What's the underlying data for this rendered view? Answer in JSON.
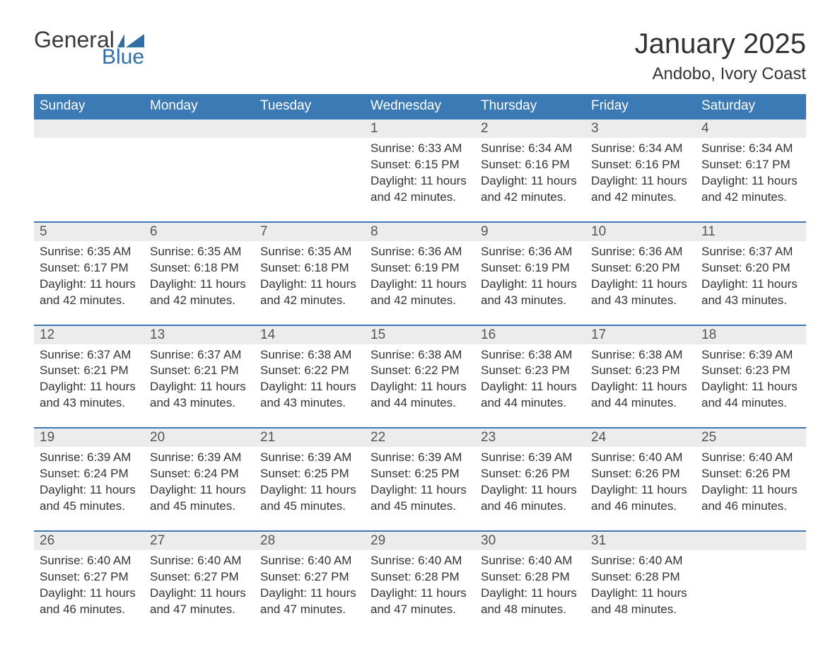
{
  "logo": {
    "text_general": "General",
    "text_blue": "Blue",
    "flag_color": "#2f6fa8"
  },
  "title": "January 2025",
  "location": "Andobo, Ivory Coast",
  "colors": {
    "header_bg": "#3b7ab5",
    "strip_bg": "#ececec",
    "strip_border": "#3b7ab5",
    "text": "#333333",
    "daynum_text": "#555555",
    "bg": "#ffffff"
  },
  "days_of_week": [
    "Sunday",
    "Monday",
    "Tuesday",
    "Wednesday",
    "Thursday",
    "Friday",
    "Saturday"
  ],
  "weeks": [
    [
      {
        "day": "",
        "sunrise": "",
        "sunset": "",
        "daylight": ""
      },
      {
        "day": "",
        "sunrise": "",
        "sunset": "",
        "daylight": ""
      },
      {
        "day": "",
        "sunrise": "",
        "sunset": "",
        "daylight": ""
      },
      {
        "day": "1",
        "sunrise": "Sunrise: 6:33 AM",
        "sunset": "Sunset: 6:15 PM",
        "daylight": "Daylight: 11 hours and 42 minutes."
      },
      {
        "day": "2",
        "sunrise": "Sunrise: 6:34 AM",
        "sunset": "Sunset: 6:16 PM",
        "daylight": "Daylight: 11 hours and 42 minutes."
      },
      {
        "day": "3",
        "sunrise": "Sunrise: 6:34 AM",
        "sunset": "Sunset: 6:16 PM",
        "daylight": "Daylight: 11 hours and 42 minutes."
      },
      {
        "day": "4",
        "sunrise": "Sunrise: 6:34 AM",
        "sunset": "Sunset: 6:17 PM",
        "daylight": "Daylight: 11 hours and 42 minutes."
      }
    ],
    [
      {
        "day": "5",
        "sunrise": "Sunrise: 6:35 AM",
        "sunset": "Sunset: 6:17 PM",
        "daylight": "Daylight: 11 hours and 42 minutes."
      },
      {
        "day": "6",
        "sunrise": "Sunrise: 6:35 AM",
        "sunset": "Sunset: 6:18 PM",
        "daylight": "Daylight: 11 hours and 42 minutes."
      },
      {
        "day": "7",
        "sunrise": "Sunrise: 6:35 AM",
        "sunset": "Sunset: 6:18 PM",
        "daylight": "Daylight: 11 hours and 42 minutes."
      },
      {
        "day": "8",
        "sunrise": "Sunrise: 6:36 AM",
        "sunset": "Sunset: 6:19 PM",
        "daylight": "Daylight: 11 hours and 42 minutes."
      },
      {
        "day": "9",
        "sunrise": "Sunrise: 6:36 AM",
        "sunset": "Sunset: 6:19 PM",
        "daylight": "Daylight: 11 hours and 43 minutes."
      },
      {
        "day": "10",
        "sunrise": "Sunrise: 6:36 AM",
        "sunset": "Sunset: 6:20 PM",
        "daylight": "Daylight: 11 hours and 43 minutes."
      },
      {
        "day": "11",
        "sunrise": "Sunrise: 6:37 AM",
        "sunset": "Sunset: 6:20 PM",
        "daylight": "Daylight: 11 hours and 43 minutes."
      }
    ],
    [
      {
        "day": "12",
        "sunrise": "Sunrise: 6:37 AM",
        "sunset": "Sunset: 6:21 PM",
        "daylight": "Daylight: 11 hours and 43 minutes."
      },
      {
        "day": "13",
        "sunrise": "Sunrise: 6:37 AM",
        "sunset": "Sunset: 6:21 PM",
        "daylight": "Daylight: 11 hours and 43 minutes."
      },
      {
        "day": "14",
        "sunrise": "Sunrise: 6:38 AM",
        "sunset": "Sunset: 6:22 PM",
        "daylight": "Daylight: 11 hours and 43 minutes."
      },
      {
        "day": "15",
        "sunrise": "Sunrise: 6:38 AM",
        "sunset": "Sunset: 6:22 PM",
        "daylight": "Daylight: 11 hours and 44 minutes."
      },
      {
        "day": "16",
        "sunrise": "Sunrise: 6:38 AM",
        "sunset": "Sunset: 6:23 PM",
        "daylight": "Daylight: 11 hours and 44 minutes."
      },
      {
        "day": "17",
        "sunrise": "Sunrise: 6:38 AM",
        "sunset": "Sunset: 6:23 PM",
        "daylight": "Daylight: 11 hours and 44 minutes."
      },
      {
        "day": "18",
        "sunrise": "Sunrise: 6:39 AM",
        "sunset": "Sunset: 6:23 PM",
        "daylight": "Daylight: 11 hours and 44 minutes."
      }
    ],
    [
      {
        "day": "19",
        "sunrise": "Sunrise: 6:39 AM",
        "sunset": "Sunset: 6:24 PM",
        "daylight": "Daylight: 11 hours and 45 minutes."
      },
      {
        "day": "20",
        "sunrise": "Sunrise: 6:39 AM",
        "sunset": "Sunset: 6:24 PM",
        "daylight": "Daylight: 11 hours and 45 minutes."
      },
      {
        "day": "21",
        "sunrise": "Sunrise: 6:39 AM",
        "sunset": "Sunset: 6:25 PM",
        "daylight": "Daylight: 11 hours and 45 minutes."
      },
      {
        "day": "22",
        "sunrise": "Sunrise: 6:39 AM",
        "sunset": "Sunset: 6:25 PM",
        "daylight": "Daylight: 11 hours and 45 minutes."
      },
      {
        "day": "23",
        "sunrise": "Sunrise: 6:39 AM",
        "sunset": "Sunset: 6:26 PM",
        "daylight": "Daylight: 11 hours and 46 minutes."
      },
      {
        "day": "24",
        "sunrise": "Sunrise: 6:40 AM",
        "sunset": "Sunset: 6:26 PM",
        "daylight": "Daylight: 11 hours and 46 minutes."
      },
      {
        "day": "25",
        "sunrise": "Sunrise: 6:40 AM",
        "sunset": "Sunset: 6:26 PM",
        "daylight": "Daylight: 11 hours and 46 minutes."
      }
    ],
    [
      {
        "day": "26",
        "sunrise": "Sunrise: 6:40 AM",
        "sunset": "Sunset: 6:27 PM",
        "daylight": "Daylight: 11 hours and 46 minutes."
      },
      {
        "day": "27",
        "sunrise": "Sunrise: 6:40 AM",
        "sunset": "Sunset: 6:27 PM",
        "daylight": "Daylight: 11 hours and 47 minutes."
      },
      {
        "day": "28",
        "sunrise": "Sunrise: 6:40 AM",
        "sunset": "Sunset: 6:27 PM",
        "daylight": "Daylight: 11 hours and 47 minutes."
      },
      {
        "day": "29",
        "sunrise": "Sunrise: 6:40 AM",
        "sunset": "Sunset: 6:28 PM",
        "daylight": "Daylight: 11 hours and 47 minutes."
      },
      {
        "day": "30",
        "sunrise": "Sunrise: 6:40 AM",
        "sunset": "Sunset: 6:28 PM",
        "daylight": "Daylight: 11 hours and 48 minutes."
      },
      {
        "day": "31",
        "sunrise": "Sunrise: 6:40 AM",
        "sunset": "Sunset: 6:28 PM",
        "daylight": "Daylight: 11 hours and 48 minutes."
      },
      {
        "day": "",
        "sunrise": "",
        "sunset": "",
        "daylight": ""
      }
    ]
  ]
}
